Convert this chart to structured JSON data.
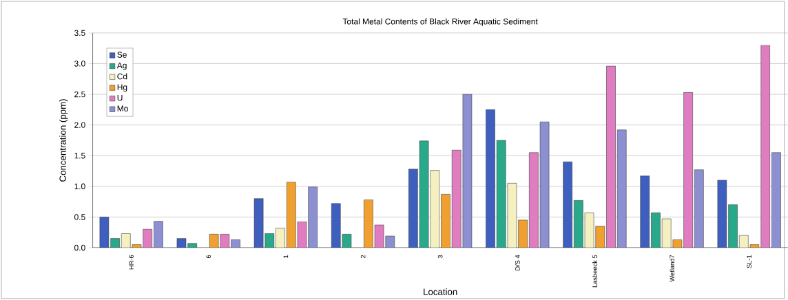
{
  "chart_data": {
    "type": "bar",
    "title": "Total Metal Contents of Black River Aquatic Sediment",
    "xlabel": "Location",
    "ylabel": "Concentration (ppm)",
    "categories": [
      "HR-6",
      "6",
      "1",
      "2",
      "3",
      "D/S 4",
      "Lasbeeck 5",
      "Wetland7",
      "SL-1"
    ],
    "series": [
      {
        "name": "Se",
        "color": "#3f5fbf",
        "values": [
          0.5,
          0.15,
          0.8,
          0.72,
          1.28,
          2.25,
          1.4,
          1.17,
          1.1
        ]
      },
      {
        "name": "Ag",
        "color": "#2aa88a",
        "values": [
          0.15,
          0.07,
          0.23,
          0.22,
          1.74,
          1.75,
          0.77,
          0.57,
          0.7
        ]
      },
      {
        "name": "Cd",
        "color": "#f5f0c0",
        "values": [
          0.23,
          null,
          0.32,
          null,
          1.26,
          1.05,
          0.57,
          0.47,
          0.2
        ]
      },
      {
        "name": "Hg",
        "color": "#f0a030",
        "values": [
          0.05,
          0.22,
          1.07,
          0.78,
          0.87,
          0.45,
          0.35,
          0.13,
          0.05
        ]
      },
      {
        "name": "U",
        "color": "#e07cc0",
        "values": [
          0.3,
          0.22,
          0.42,
          0.37,
          1.59,
          1.55,
          2.96,
          2.53,
          3.3
        ]
      },
      {
        "name": "Mo",
        "color": "#8c90d0",
        "values": [
          0.43,
          0.13,
          0.99,
          0.19,
          2.5,
          2.05,
          1.92,
          1.27,
          1.55
        ]
      }
    ],
    "ylim": [
      0,
      3.5
    ],
    "yticks": [
      {
        "value": 0,
        "label": "0.0"
      },
      {
        "value": 0.5,
        "label": "0.5"
      },
      {
        "value": 1,
        "label": "1.0"
      },
      {
        "value": 1.5,
        "label": "1.5"
      },
      {
        "value": 2,
        "label": "2.0"
      },
      {
        "value": 2.5,
        "label": "2.5"
      },
      {
        "value": 3,
        "label": "3.0"
      },
      {
        "value": 3.5,
        "label": "3.5"
      }
    ],
    "grid": "y",
    "legend": "top left"
  }
}
